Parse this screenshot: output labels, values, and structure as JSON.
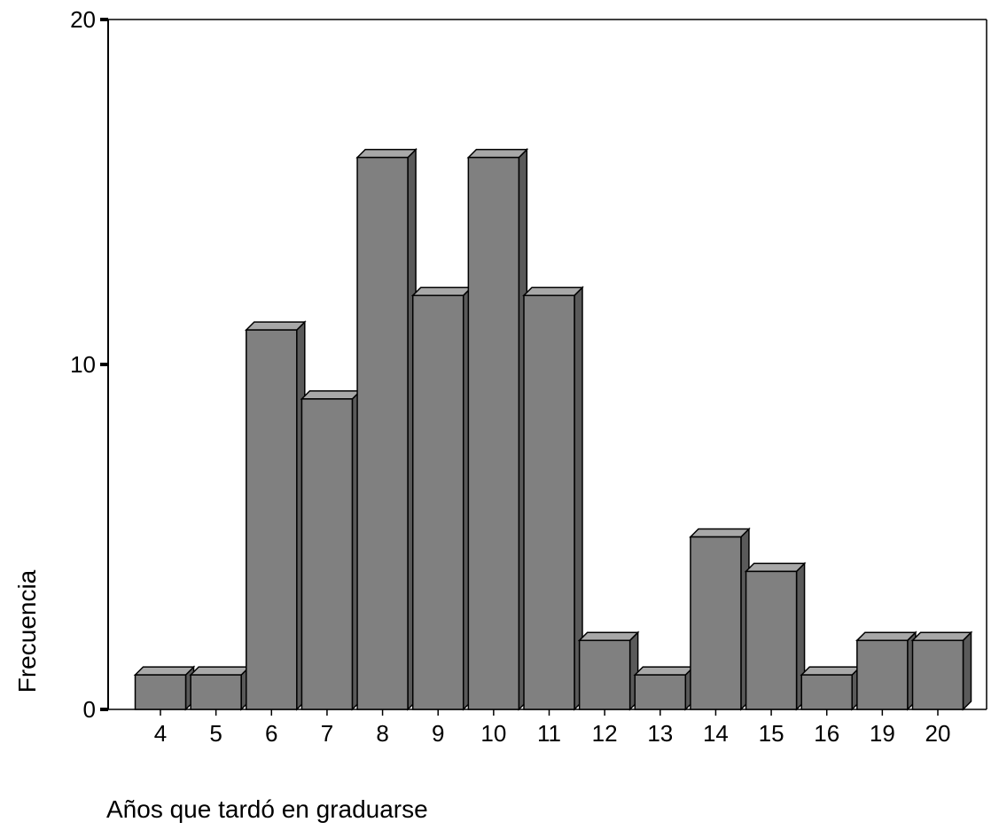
{
  "chart_data": {
    "type": "bar",
    "title": "",
    "xlabel": "Años que tardó en graduarse",
    "ylabel": "Frecuencia",
    "categories": [
      "4",
      "5",
      "6",
      "7",
      "8",
      "9",
      "10",
      "11",
      "12",
      "13",
      "14",
      "15",
      "16",
      "19",
      "20"
    ],
    "values": [
      1,
      1,
      11,
      9,
      16,
      12,
      16,
      12,
      2,
      1,
      5,
      4,
      1,
      2,
      2
    ],
    "ylim": [
      0,
      20
    ],
    "yticks": [
      "0",
      "10",
      "20"
    ],
    "grid": false,
    "legend": "none",
    "bar_color": "#808080",
    "bar_side_color": "#5a5a5a",
    "bar_top_color": "#a8a8a8",
    "outline_color": "#000000"
  }
}
